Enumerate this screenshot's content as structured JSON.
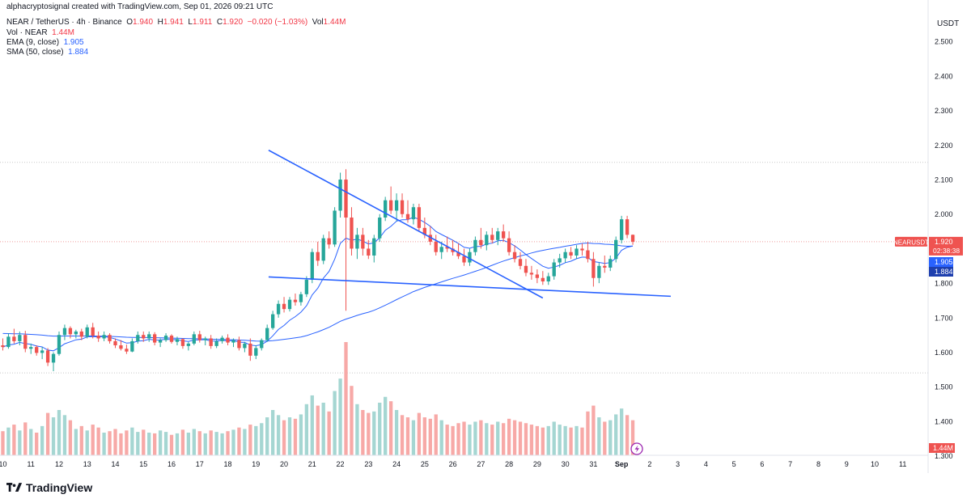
{
  "header": {
    "credit": "alphacryptosignal created with TradingView.com, Sep 01, 2026 09:21 UTC",
    "symbol": "NEAR / TetherUS · 4h · Binance",
    "ohlc": {
      "o_label": "O",
      "o": "1.940",
      "h_label": "H",
      "h": "1.941",
      "l_label": "L",
      "l": "1.911",
      "c_label": "C",
      "c": "1.920",
      "change": "−0.020 (−1.03%)",
      "vol_label": "Vol",
      "vol": "1.44M"
    },
    "indicators": [
      {
        "label": "Vol · NEAR",
        "value": "1.44M",
        "color": "#f23645"
      },
      {
        "label": "EMA (9, close)",
        "value": "1.905",
        "color": "#2962ff"
      },
      {
        "label": "SMA (50, close)",
        "value": "1.884",
        "color": "#2962ff"
      }
    ]
  },
  "currency": "USDT",
  "price_tags": {
    "symbol": "NEARUSDT",
    "price": "1.920",
    "countdown": "02:38:38",
    "ema": "1.905",
    "sma": "1.884",
    "volume": "1.44M"
  },
  "footer": {
    "brand": "TradingView"
  },
  "colors": {
    "up": "#26a69a",
    "down": "#ef5350",
    "line": "#2962ff",
    "vol_up": "#a5d6d2",
    "vol_down": "#f7a9a7",
    "grid_dots": "#ef9a9a"
  },
  "chart_data": {
    "type": "candlestick",
    "interval": "4h",
    "y_axis": {
      "ticks": [
        "1.300",
        "1.400",
        "1.500",
        "1.600",
        "1.700",
        "1.800",
        "1.900",
        "2.000",
        "2.100",
        "2.200",
        "2.300",
        "2.400",
        "2.500"
      ],
      "range": [
        1.25,
        2.62
      ]
    },
    "x_axis": {
      "ticks": [
        "10",
        "11",
        "12",
        "13",
        "14",
        "15",
        "16",
        "17",
        "18",
        "19",
        "20",
        "21",
        "22",
        "23",
        "24",
        "25",
        "26",
        "27",
        "28",
        "29",
        "30",
        "31",
        "Sep",
        "2",
        "3",
        "4",
        "5",
        "6",
        "7",
        "8",
        "9",
        "10",
        "11"
      ],
      "range": [
        9.9,
        42.9
      ]
    },
    "last_price": 1.92,
    "horizontal_levels": [
      2.15,
      1.54
    ],
    "trendlines": [
      {
        "name": "",
        "points": [
          [
            19.45,
            2.185
          ],
          [
            29.2,
            1.757
          ]
        ]
      },
      {
        "name": "",
        "points": [
          [
            19.45,
            1.818
          ],
          [
            33.75,
            1.762
          ]
        ]
      }
    ],
    "candles": [
      [
        10.0,
        1.62,
        1.64,
        1.605,
        1.615,
        0.33
      ],
      [
        10.2,
        1.615,
        1.655,
        1.61,
        1.645,
        0.38
      ],
      [
        10.4,
        1.645,
        1.668,
        1.625,
        1.632,
        0.42
      ],
      [
        10.6,
        1.632,
        1.66,
        1.62,
        1.65,
        0.34
      ],
      [
        10.8,
        1.65,
        1.662,
        1.6,
        1.61,
        0.45
      ],
      [
        11.0,
        1.61,
        1.625,
        1.595,
        1.615,
        0.36
      ],
      [
        11.2,
        1.615,
        1.62,
        1.59,
        1.598,
        0.31
      ],
      [
        11.4,
        1.598,
        1.615,
        1.58,
        1.605,
        0.4
      ],
      [
        11.6,
        1.605,
        1.612,
        1.56,
        1.57,
        0.58
      ],
      [
        11.8,
        1.57,
        1.6,
        1.545,
        1.595,
        0.52
      ],
      [
        12.0,
        1.595,
        1.66,
        1.59,
        1.65,
        0.62
      ],
      [
        12.2,
        1.65,
        1.68,
        1.635,
        1.67,
        0.55
      ],
      [
        12.4,
        1.67,
        1.675,
        1.64,
        1.652,
        0.48
      ],
      [
        12.6,
        1.652,
        1.665,
        1.64,
        1.66,
        0.36
      ],
      [
        12.8,
        1.66,
        1.668,
        1.635,
        1.645,
        0.4
      ],
      [
        13.0,
        1.645,
        1.68,
        1.64,
        1.672,
        0.34
      ],
      [
        13.2,
        1.672,
        1.685,
        1.64,
        1.648,
        0.42
      ],
      [
        13.4,
        1.648,
        1.66,
        1.63,
        1.64,
        0.38
      ],
      [
        13.6,
        1.64,
        1.66,
        1.632,
        1.65,
        0.31
      ],
      [
        13.8,
        1.65,
        1.655,
        1.625,
        1.632,
        0.33
      ],
      [
        14.0,
        1.632,
        1.64,
        1.612,
        1.62,
        0.36
      ],
      [
        14.2,
        1.62,
        1.635,
        1.605,
        1.61,
        0.3
      ],
      [
        14.4,
        1.61,
        1.622,
        1.595,
        1.602,
        0.34
      ],
      [
        14.6,
        1.602,
        1.64,
        1.6,
        1.632,
        0.38
      ],
      [
        14.8,
        1.632,
        1.66,
        1.625,
        1.65,
        0.32
      ],
      [
        15.0,
        1.65,
        1.66,
        1.63,
        1.64,
        0.35
      ],
      [
        15.2,
        1.64,
        1.66,
        1.63,
        1.652,
        0.31
      ],
      [
        15.4,
        1.652,
        1.658,
        1.62,
        1.628,
        0.3
      ],
      [
        15.6,
        1.628,
        1.64,
        1.615,
        1.635,
        0.34
      ],
      [
        15.8,
        1.635,
        1.655,
        1.63,
        1.648,
        0.32
      ],
      [
        16.0,
        1.648,
        1.652,
        1.625,
        1.63,
        0.28
      ],
      [
        16.2,
        1.63,
        1.645,
        1.62,
        1.638,
        0.3
      ],
      [
        16.4,
        1.638,
        1.64,
        1.61,
        1.618,
        0.35
      ],
      [
        16.6,
        1.618,
        1.63,
        1.605,
        1.625,
        0.31
      ],
      [
        16.8,
        1.625,
        1.66,
        1.62,
        1.652,
        0.36
      ],
      [
        17.0,
        1.652,
        1.662,
        1.628,
        1.635,
        0.33
      ],
      [
        17.2,
        1.635,
        1.645,
        1.62,
        1.64,
        0.3
      ],
      [
        17.4,
        1.64,
        1.65,
        1.61,
        1.618,
        0.34
      ],
      [
        17.6,
        1.618,
        1.64,
        1.612,
        1.632,
        0.32
      ],
      [
        17.8,
        1.632,
        1.648,
        1.625,
        1.642,
        0.3
      ],
      [
        18.0,
        1.642,
        1.652,
        1.62,
        1.628,
        0.33
      ],
      [
        18.2,
        1.628,
        1.64,
        1.615,
        1.635,
        0.35
      ],
      [
        18.4,
        1.635,
        1.645,
        1.605,
        1.612,
        0.38
      ],
      [
        18.6,
        1.612,
        1.63,
        1.6,
        1.625,
        0.36
      ],
      [
        18.8,
        1.625,
        1.64,
        1.575,
        1.59,
        0.42
      ],
      [
        19.0,
        1.59,
        1.62,
        1.58,
        1.612,
        0.4
      ],
      [
        19.2,
        1.612,
        1.64,
        1.605,
        1.635,
        0.44
      ],
      [
        19.4,
        1.635,
        1.68,
        1.63,
        1.67,
        0.52
      ],
      [
        19.6,
        1.67,
        1.72,
        1.665,
        1.71,
        0.62
      ],
      [
        19.8,
        1.71,
        1.75,
        1.7,
        1.74,
        0.55
      ],
      [
        20.0,
        1.74,
        1.76,
        1.715,
        1.725,
        0.48
      ],
      [
        20.2,
        1.725,
        1.76,
        1.718,
        1.752,
        0.52
      ],
      [
        20.4,
        1.752,
        1.77,
        1.735,
        1.745,
        0.5
      ],
      [
        20.6,
        1.745,
        1.775,
        1.735,
        1.768,
        0.56
      ],
      [
        20.8,
        1.768,
        1.82,
        1.76,
        1.81,
        0.7
      ],
      [
        21.0,
        1.81,
        1.9,
        1.8,
        1.89,
        0.82
      ],
      [
        21.2,
        1.89,
        1.92,
        1.85,
        1.865,
        0.68
      ],
      [
        21.4,
        1.865,
        1.94,
        1.855,
        1.93,
        0.72
      ],
      [
        21.6,
        1.93,
        1.95,
        1.9,
        1.912,
        0.6
      ],
      [
        21.8,
        1.912,
        2.02,
        1.905,
        2.01,
        0.88
      ],
      [
        22.0,
        2.01,
        2.12,
        1.99,
        2.1,
        1.05
      ],
      [
        22.2,
        2.1,
        2.13,
        1.72,
        1.99,
        1.55
      ],
      [
        22.4,
        1.99,
        2.02,
        1.88,
        1.9,
        0.95
      ],
      [
        22.6,
        1.9,
        1.96,
        1.87,
        1.94,
        0.7
      ],
      [
        22.8,
        1.94,
        1.96,
        1.88,
        1.9,
        0.62
      ],
      [
        23.0,
        1.9,
        1.925,
        1.87,
        1.88,
        0.58
      ],
      [
        23.2,
        1.88,
        1.94,
        1.86,
        1.93,
        0.6
      ],
      [
        23.4,
        1.93,
        2.0,
        1.92,
        1.99,
        0.72
      ],
      [
        23.6,
        1.99,
        2.05,
        1.98,
        2.04,
        0.8
      ],
      [
        23.8,
        2.04,
        2.08,
        2.0,
        2.01,
        0.74
      ],
      [
        24.0,
        2.01,
        2.06,
        1.98,
        2.04,
        0.62
      ],
      [
        24.2,
        2.04,
        2.06,
        1.99,
        2.0,
        0.55
      ],
      [
        24.4,
        2.0,
        2.04,
        1.975,
        1.985,
        0.52
      ],
      [
        24.6,
        1.985,
        2.03,
        1.97,
        2.02,
        0.48
      ],
      [
        24.8,
        2.02,
        2.03,
        1.95,
        1.96,
        0.58
      ],
      [
        25.0,
        1.96,
        1.99,
        1.93,
        1.94,
        0.52
      ],
      [
        25.2,
        1.94,
        1.965,
        1.91,
        1.92,
        0.5
      ],
      [
        25.4,
        1.92,
        1.94,
        1.88,
        1.89,
        0.56
      ],
      [
        25.6,
        1.89,
        1.92,
        1.87,
        1.905,
        0.48
      ],
      [
        25.8,
        1.905,
        1.935,
        1.89,
        1.9,
        0.42
      ],
      [
        26.0,
        1.9,
        1.925,
        1.88,
        1.89,
        0.4
      ],
      [
        26.2,
        1.89,
        1.915,
        1.87,
        1.878,
        0.44
      ],
      [
        26.4,
        1.878,
        1.9,
        1.85,
        1.86,
        0.46
      ],
      [
        26.6,
        1.86,
        1.9,
        1.85,
        1.89,
        0.42
      ],
      [
        26.8,
        1.89,
        1.935,
        1.88,
        1.925,
        0.46
      ],
      [
        27.0,
        1.925,
        1.96,
        1.9,
        1.91,
        0.48
      ],
      [
        27.2,
        1.91,
        1.95,
        1.895,
        1.94,
        0.44
      ],
      [
        27.4,
        1.94,
        1.96,
        1.915,
        1.925,
        0.42
      ],
      [
        27.6,
        1.925,
        1.96,
        1.91,
        1.95,
        0.46
      ],
      [
        27.8,
        1.95,
        1.97,
        1.92,
        1.93,
        0.44
      ],
      [
        28.0,
        1.93,
        1.95,
        1.88,
        1.89,
        0.5
      ],
      [
        28.2,
        1.89,
        1.91,
        1.86,
        1.87,
        0.48
      ],
      [
        28.4,
        1.87,
        1.89,
        1.84,
        1.85,
        0.46
      ],
      [
        28.6,
        1.85,
        1.87,
        1.82,
        1.83,
        0.44
      ],
      [
        28.8,
        1.83,
        1.85,
        1.81,
        1.825,
        0.42
      ],
      [
        29.0,
        1.825,
        1.84,
        1.8,
        1.815,
        0.4
      ],
      [
        29.2,
        1.815,
        1.835,
        1.795,
        1.805,
        0.38
      ],
      [
        29.4,
        1.805,
        1.83,
        1.795,
        1.82,
        0.4
      ],
      [
        29.6,
        1.82,
        1.87,
        1.81,
        1.86,
        0.46
      ],
      [
        29.8,
        1.86,
        1.885,
        1.845,
        1.872,
        0.42
      ],
      [
        30.0,
        1.872,
        1.9,
        1.86,
        1.89,
        0.4
      ],
      [
        30.2,
        1.89,
        1.905,
        1.87,
        1.88,
        0.38
      ],
      [
        30.4,
        1.88,
        1.91,
        1.87,
        1.9,
        0.4
      ],
      [
        30.6,
        1.9,
        1.915,
        1.88,
        1.895,
        0.38
      ],
      [
        30.8,
        1.895,
        1.92,
        1.86,
        1.87,
        0.6
      ],
      [
        31.0,
        1.87,
        1.89,
        1.79,
        1.815,
        0.68
      ],
      [
        31.2,
        1.815,
        1.86,
        1.8,
        1.85,
        0.52
      ],
      [
        31.4,
        1.85,
        1.88,
        1.83,
        1.845,
        0.46
      ],
      [
        31.6,
        1.845,
        1.88,
        1.835,
        1.87,
        0.48
      ],
      [
        31.8,
        1.87,
        1.935,
        1.86,
        1.925,
        0.56
      ],
      [
        32.0,
        1.925,
        1.995,
        1.915,
        1.985,
        0.64
      ],
      [
        32.2,
        1.985,
        1.995,
        1.93,
        1.94,
        0.55
      ],
      [
        32.4,
        1.94,
        1.941,
        1.911,
        1.92,
        0.48
      ]
    ]
  }
}
